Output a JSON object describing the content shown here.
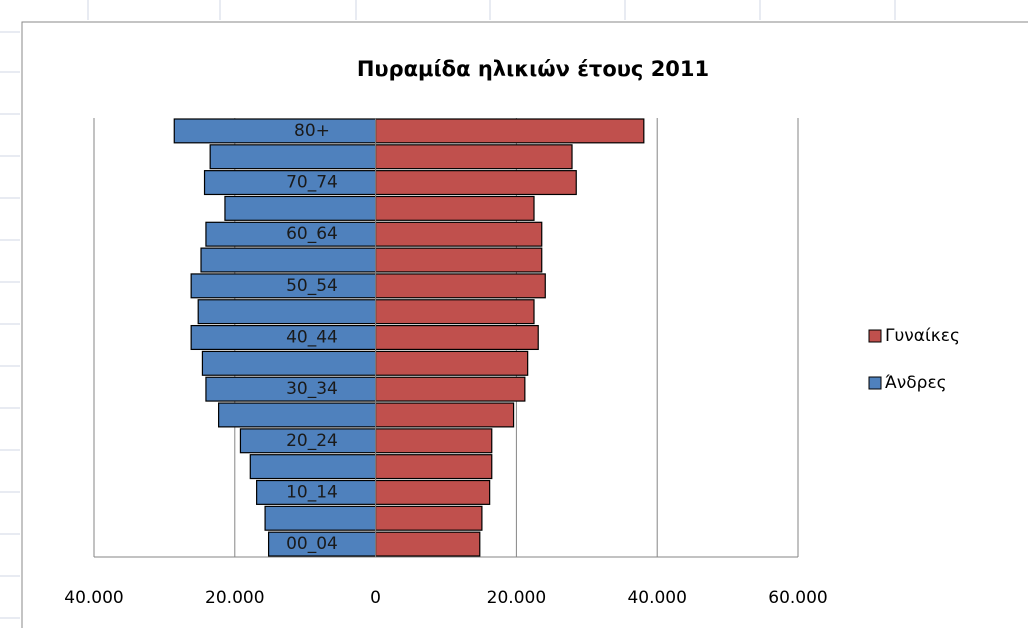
{
  "chart_data": {
    "type": "pyramid",
    "title": "Πυραμίδα ηλικιών έτους 2011",
    "categories": [
      "00_04",
      null,
      "10_14",
      null,
      "20_24",
      null,
      "30_34",
      null,
      "40_44",
      null,
      "50_54",
      null,
      "60_64",
      null,
      "70_74",
      null,
      "80+"
    ],
    "series": [
      {
        "name": "Άνδρες",
        "color": "#4f81bd",
        "values": [
          -15200,
          -15700,
          -16900,
          -17800,
          -19200,
          -22300,
          -24100,
          -24600,
          -26200,
          -25200,
          -26200,
          -24800,
          -24100,
          -21400,
          -24300,
          -23500,
          -28600
        ]
      },
      {
        "name": "Γυναίκες",
        "color": "#c0504d",
        "values": [
          14800,
          15100,
          16200,
          16500,
          16500,
          19600,
          21200,
          21600,
          23100,
          22500,
          24100,
          23600,
          23600,
          22500,
          28500,
          27900,
          38100
        ]
      }
    ],
    "xlim": [
      -40000,
      60000
    ],
    "xticks": [
      {
        "value": -40000,
        "label": "40.000"
      },
      {
        "value": -20000,
        "label": "20.000"
      },
      0,
      {
        "value": 20000,
        "label": "20.000"
      },
      {
        "value": 40000,
        "label": "40.000"
      },
      {
        "value": 60000,
        "label": "60.000"
      }
    ],
    "grid": true,
    "legend": "right"
  }
}
